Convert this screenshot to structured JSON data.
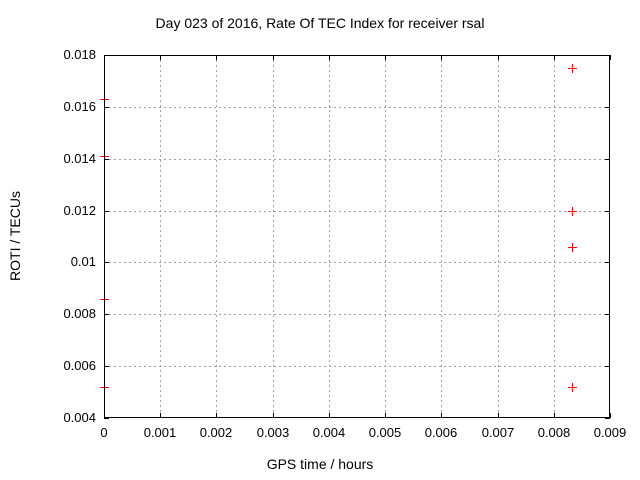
{
  "chart_data": {
    "type": "scatter",
    "title": "Day 023 of 2016, Rate Of TEC Index for receiver rsal",
    "xlabel": "GPS time / hours",
    "ylabel": "ROTI / TECUs",
    "xlim": [
      0,
      0.009
    ],
    "ylim": [
      0.004,
      0.018
    ],
    "x_ticks": {
      "values": [
        0,
        0.001,
        0.002,
        0.003,
        0.004,
        0.005,
        0.006,
        0.007,
        0.008,
        0.009
      ],
      "labels": [
        "0",
        "0.001",
        "0.002",
        "0.003",
        "0.004",
        "0.005",
        "0.006",
        "0.007",
        "0.008",
        "0.009"
      ]
    },
    "y_ticks": {
      "values": [
        0.004,
        0.006,
        0.008,
        0.01,
        0.012,
        0.014,
        0.016,
        0.018
      ],
      "labels": [
        "0.004",
        "0.006",
        "0.008",
        "0.01",
        "0.012",
        "0.014",
        "0.016",
        "0.018"
      ]
    },
    "grid": true,
    "legend": "none",
    "marker": "plus",
    "marker_color": "#ff0000",
    "grid_color": "#a0a0a0",
    "border_color": "#000000",
    "series": [
      {
        "name": "roti",
        "points": [
          [
            0,
            0.0163
          ],
          [
            0,
            0.0141
          ],
          [
            0,
            0.0086
          ],
          [
            0,
            0.0052
          ],
          [
            0.00833,
            0.0175
          ],
          [
            0.00833,
            0.012
          ],
          [
            0.00833,
            0.0106
          ],
          [
            0.00833,
            0.0052
          ]
        ]
      }
    ]
  }
}
